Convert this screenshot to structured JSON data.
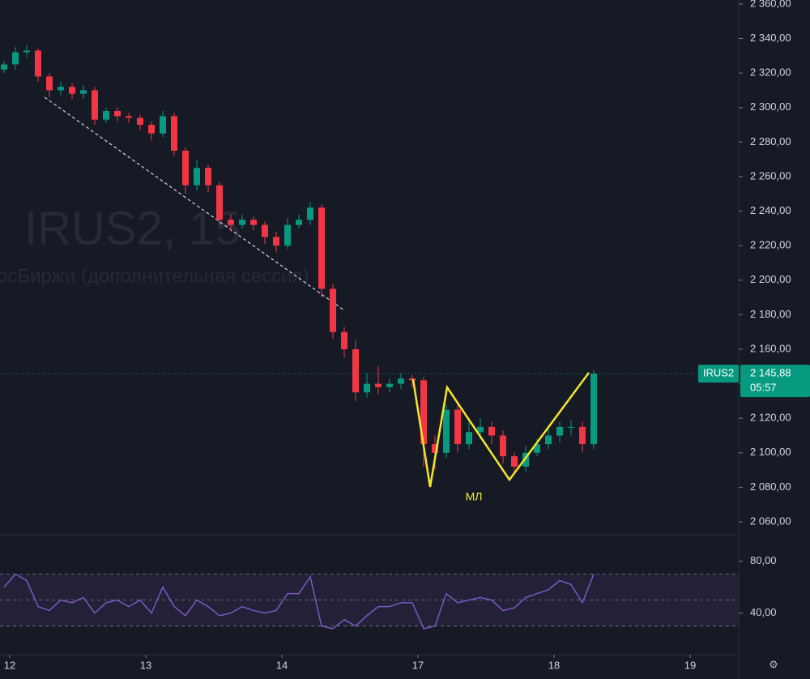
{
  "chart_data": [
    {
      "type": "candlestick",
      "watermark": "IRUS2, 15",
      "watermark_subtitle": "осБиржи (дополнительная сессия)",
      "open": [
        2322,
        2325,
        2332,
        2333,
        2318,
        2310,
        2312,
        2308,
        2310,
        2293,
        2298,
        2295,
        2294,
        2290,
        2285,
        2295,
        2275,
        2255,
        2265,
        2255,
        2235,
        2232,
        2235,
        2232,
        2225,
        2220,
        2232,
        2235,
        2242,
        2195,
        2170,
        2160,
        2135,
        2140,
        2138,
        2140,
        2143,
        2142,
        2105,
        2100,
        2125,
        2105,
        2112,
        2115,
        2110,
        2098,
        2092,
        2100,
        2105,
        2110,
        2115,
        2115,
        2105
      ],
      "high": [
        2327,
        2335,
        2336,
        2334,
        2320,
        2315,
        2314,
        2313,
        2312,
        2300,
        2300,
        2297,
        2296,
        2292,
        2298,
        2297,
        2277,
        2270,
        2267,
        2257,
        2238,
        2238,
        2237,
        2234,
        2228,
        2236,
        2238,
        2245,
        2244,
        2198,
        2173,
        2165,
        2146,
        2150,
        2143,
        2146,
        2145,
        2144,
        2110,
        2128,
        2128,
        2118,
        2120,
        2118,
        2113,
        2100,
        2104,
        2108,
        2114,
        2118,
        2119,
        2118,
        2148
      ],
      "low": [
        2320,
        2322,
        2329,
        2315,
        2306,
        2307,
        2305,
        2305,
        2290,
        2291,
        2292,
        2291,
        2287,
        2281,
        2283,
        2272,
        2250,
        2252,
        2251,
        2232,
        2228,
        2230,
        2229,
        2221,
        2216,
        2218,
        2230,
        2232,
        2190,
        2166,
        2155,
        2130,
        2132,
        2134,
        2135,
        2137,
        2138,
        2092,
        2090,
        2097,
        2100,
        2102,
        2108,
        2105,
        2094,
        2088,
        2089,
        2098,
        2102,
        2106,
        2110,
        2100,
        2102
      ],
      "close": [
        2325,
        2332,
        2333,
        2318,
        2310,
        2312,
        2308,
        2310,
        2293,
        2298,
        2295,
        2294,
        2290,
        2285,
        2295,
        2275,
        2255,
        2265,
        2255,
        2235,
        2232,
        2235,
        2232,
        2225,
        2220,
        2232,
        2235,
        2242,
        2195,
        2170,
        2160,
        2135,
        2140,
        2138,
        2140,
        2143,
        2142,
        2105,
        2100,
        2125,
        2105,
        2112,
        2115,
        2110,
        2098,
        2092,
        2100,
        2105,
        2110,
        2115,
        2115,
        2105,
        2145.88
      ],
      "up_color": "#089981",
      "down_color": "#f23645",
      "ylim": [
        2052.5,
        2362.3
      ],
      "yticks": [
        {
          "value": 2060,
          "label": "2 060,00"
        },
        {
          "value": 2080,
          "label": "2 080,00"
        },
        {
          "value": 2100,
          "label": "2 100,00"
        },
        {
          "value": 2120,
          "label": "2 120,00"
        },
        {
          "value": 2140,
          "label": "2 140,00"
        },
        {
          "value": 2160,
          "label": "2 160,00"
        },
        {
          "value": 2180,
          "label": "2 180,00"
        },
        {
          "value": 2200,
          "label": "2 200,00"
        },
        {
          "value": 2220,
          "label": "2 220,00"
        },
        {
          "value": 2240,
          "label": "2 240,00"
        },
        {
          "value": 2260,
          "label": "2 260,00"
        },
        {
          "value": 2280,
          "label": "2 280,00"
        },
        {
          "value": 2300,
          "label": "2 300,00"
        },
        {
          "value": 2320,
          "label": "2 320,00"
        },
        {
          "value": 2340,
          "label": "2 340,00"
        },
        {
          "value": 2360,
          "label": "2 360,00"
        }
      ],
      "xticks": [
        {
          "value": 0.5,
          "label": "12"
        },
        {
          "value": 12.5,
          "label": "13"
        },
        {
          "value": 24.5,
          "label": "14"
        },
        {
          "value": 36.5,
          "label": "17"
        },
        {
          "value": 48.5,
          "label": "18"
        },
        {
          "value": 60.5,
          "label": "19"
        }
      ],
      "price_tag": {
        "symbol": "IRUS2",
        "value": 2145.88,
        "label": "2 145,88",
        "countdown": "05:57",
        "color": "#089981"
      },
      "trendline": {
        "x": [
          3.57,
          30
        ],
        "y": [
          2306,
          2182.5
        ],
        "color": "#d1d4dc"
      },
      "pattern": {
        "label": "МЛ",
        "x": [
          36.07,
          37.57,
          39.07,
          44.57,
          51.57
        ],
        "y": [
          2142.6,
          2080.2,
          2137.9,
          2084.4,
          2146.4
        ],
        "color": "#f5e52b"
      }
    },
    {
      "type": "line",
      "name": "RSI",
      "values": [
        60,
        70,
        65,
        45,
        42,
        50,
        48,
        52,
        40,
        48,
        50,
        45,
        50,
        40,
        60,
        45,
        38,
        50,
        45,
        38,
        40,
        45,
        42,
        40,
        42,
        55,
        55,
        68,
        30,
        28,
        35,
        30,
        38,
        45,
        45,
        48,
        48,
        28,
        30,
        55,
        48,
        50,
        52,
        50,
        42,
        44,
        52,
        55,
        58,
        65,
        62,
        48,
        70
      ],
      "color": "#7e57c2",
      "ylim": [
        8,
        99
      ],
      "yticks": [
        {
          "value": 40,
          "label": "40,00"
        },
        {
          "value": 80,
          "label": "80,00"
        }
      ],
      "levels": [
        70,
        50,
        30
      ]
    }
  ]
}
